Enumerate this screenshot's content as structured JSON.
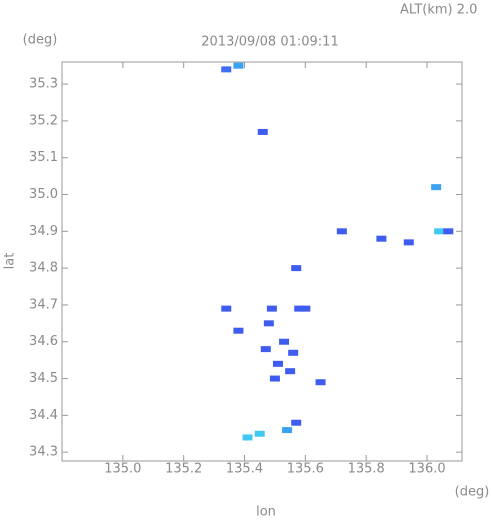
{
  "chart_data": {
    "type": "scatter",
    "title": "2013/09/08 01:09:11",
    "subtitle": "ALT(km) 2.0",
    "x_label": "lon",
    "y_label": "lat",
    "x_unit": "(deg)",
    "y_unit": "(deg)",
    "xlim": [
      134.8,
      136.115
    ],
    "ylim": [
      34.276,
      35.36
    ],
    "xticks": [
      {
        "value": 135,
        "label": "135.0"
      },
      135.2,
      135.4,
      135.6,
      135.8,
      {
        "value": 136,
        "label": "136.0"
      }
    ],
    "yticks": [
      34.3,
      34.4,
      34.5,
      34.6,
      34.7,
      34.8,
      34.9,
      {
        "value": 35,
        "label": "35.0"
      },
      35.1,
      35.2,
      35.3
    ],
    "x": [
      135.34,
      135.38,
      135.46,
      136.03,
      136.04,
      136.07,
      135.72,
      135.85,
      135.94,
      135.57,
      135.34,
      135.38,
      135.49,
      135.58,
      135.6,
      135.48,
      135.53,
      135.56,
      135.47,
      135.51,
      135.55,
      135.5,
      135.65,
      135.57,
      135.45,
      135.41,
      135.54
    ],
    "y": [
      35.34,
      35.35,
      35.17,
      35.02,
      34.9,
      34.9,
      34.9,
      34.88,
      34.87,
      34.8,
      34.69,
      34.63,
      34.69,
      34.69,
      34.69,
      34.65,
      34.6,
      34.57,
      34.58,
      34.54,
      34.52,
      34.5,
      34.49,
      34.38,
      34.35,
      34.34,
      34.36
    ],
    "colors": [
      "#3f6df5",
      "#3aa0f0",
      "#3f5cf0",
      "#3aa0f0",
      "#40c8f0",
      "#3f5cf0",
      "#3f5cf0",
      "#3f5cf0",
      "#3f5cf0",
      "#3f5cf0",
      "#3f5cf0",
      "#3f5cf0",
      "#3f5cf0",
      "#3f5cf0",
      "#3f5cf0",
      "#3f5cf0",
      "#3f5cf0",
      "#3f5cf0",
      "#3f5cf0",
      "#3f5cf0",
      "#3f5cf0",
      "#3f5cf0",
      "#3f5cf0",
      "#3f5cf0",
      "#40c8f0",
      "#40c8f0",
      "#3aa0f0"
    ]
  }
}
